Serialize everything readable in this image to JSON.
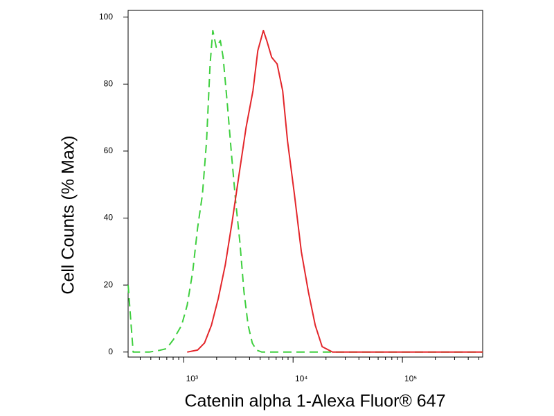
{
  "chart_data": {
    "type": "line",
    "xlabel": "Catenin alpha 1-Alexa Fluor® 647",
    "ylabel": "Cell Counts (% Max)",
    "xscale": "log",
    "xlim": [
      310,
      542000
    ],
    "ylim": [
      -1.5,
      102
    ],
    "xticks": [
      {
        "value": 1000,
        "label": "10³"
      },
      {
        "value": 10000,
        "label": "10⁴"
      },
      {
        "value": 100000,
        "label": "10⁵"
      }
    ],
    "xminorticks": [
      400,
      500,
      600,
      700,
      800,
      900,
      2000,
      3000,
      4000,
      5000,
      6000,
      7000,
      8000,
      9000,
      20000,
      30000,
      40000,
      50000,
      60000,
      70000,
      80000,
      90000,
      200000,
      300000,
      400000,
      500000
    ],
    "yticks": [
      0,
      20,
      40,
      60,
      80,
      100
    ],
    "series": [
      {
        "color": "#3ecf3e",
        "dashed": true,
        "x": [
          310,
          345,
          483,
          600,
          695,
          803,
          957,
          1076,
          1209,
          1339,
          1483,
          1618,
          1742,
          1845,
          1984,
          2163,
          2294,
          2505,
          2735,
          2985,
          3259,
          3557,
          3882,
          4238,
          4625,
          5190,
          542000
        ],
        "values": [
          20,
          0,
          0,
          0.5,
          1,
          3.7,
          8,
          14,
          24,
          37,
          47,
          63,
          86,
          96,
          91,
          93,
          88,
          74,
          59,
          45,
          33,
          18,
          8,
          2.7,
          0.6,
          0,
          0
        ]
      },
      {
        "color": "#e3262b",
        "dashed": false,
        "x": [
          1076,
          1339,
          1549,
          1791,
          2070,
          2399,
          2773,
          3206,
          3715,
          4295,
          4757,
          5346,
          5741,
          6368,
          7145,
          8035,
          8892,
          10300,
          11900,
          13800,
          15950,
          18450,
          22960,
          542000
        ],
        "values": [
          0,
          0.6,
          2.7,
          8,
          16,
          26,
          39,
          53,
          67,
          78,
          90,
          96,
          93,
          88,
          86,
          78,
          63,
          47,
          30,
          18,
          8,
          1.6,
          0,
          0
        ]
      }
    ]
  }
}
